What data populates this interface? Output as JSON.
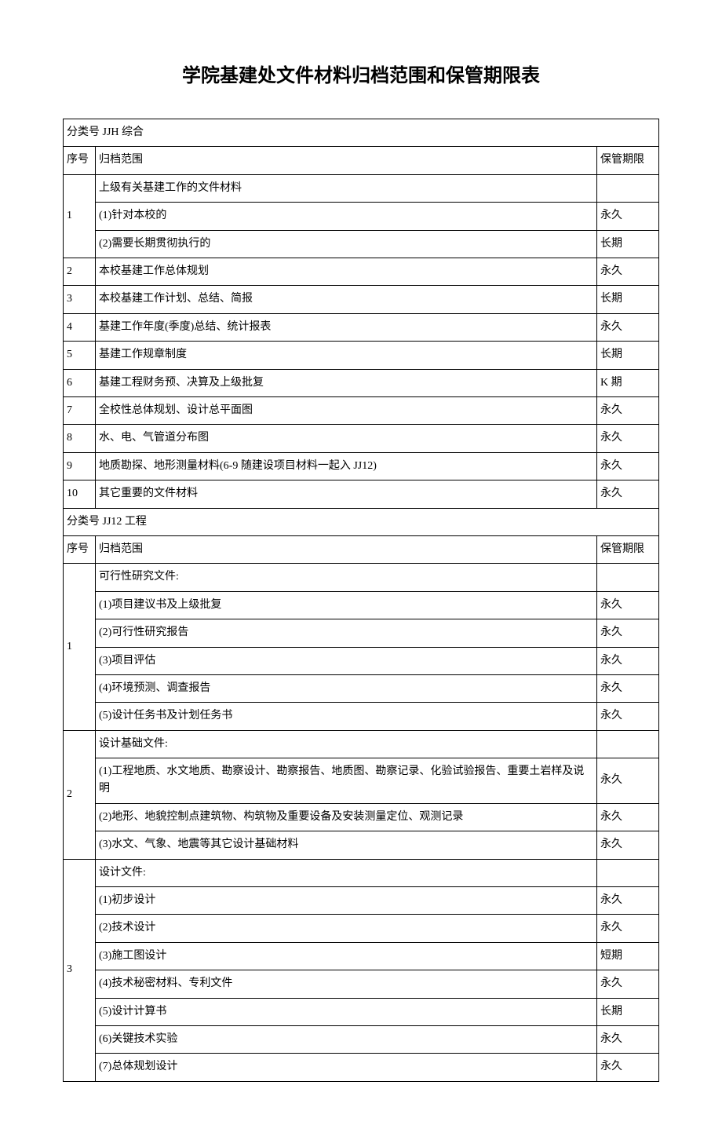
{
  "title": "学院基建处文件材料归档范围和保管期限表",
  "headers": {
    "seq": "序号",
    "scope": "归档范围",
    "period": "保管期限"
  },
  "sections": [
    {
      "category": "分类号 JJH 综合",
      "rows": [
        {
          "seq": "1",
          "items": [
            {
              "scope": "上级有关基建工作的文件材料",
              "period": ""
            },
            {
              "scope": "(1)针对本校的",
              "period": "永久"
            },
            {
              "scope": "(2)需要长期贯彻执行的",
              "period": "长期"
            }
          ]
        },
        {
          "seq": "2",
          "items": [
            {
              "scope": "本校基建工作总体规划",
              "period": "永久"
            }
          ]
        },
        {
          "seq": "3",
          "items": [
            {
              "scope": "本校基建工作计划、总结、简报",
              "period": "长期"
            }
          ]
        },
        {
          "seq": "4",
          "items": [
            {
              "scope": "基建工作年度(季度)总结、统计报表",
              "period": "永久"
            }
          ]
        },
        {
          "seq": "5",
          "items": [
            {
              "scope": "基建工作规章制度",
              "period": "长期"
            }
          ]
        },
        {
          "seq": "6",
          "items": [
            {
              "scope": "基建工程财务预、决算及上级批复",
              "period": "K 期"
            }
          ]
        },
        {
          "seq": "7",
          "items": [
            {
              "scope": "全校性总体规划、设计总平面图",
              "period": "永久"
            }
          ]
        },
        {
          "seq": "8",
          "items": [
            {
              "scope": "水、电、气管道分布图",
              "period": "永久"
            }
          ]
        },
        {
          "seq": "9",
          "items": [
            {
              "scope": "地质勘探、地形测量材料(6-9 随建设项目材料一起入 JJ12)",
              "period": "永久"
            }
          ]
        },
        {
          "seq": "10",
          "items": [
            {
              "scope": "其它重要的文件材料",
              "period": "永久"
            }
          ]
        }
      ]
    },
    {
      "category": "分类号 JJ12 工程",
      "rows": [
        {
          "seq": "1",
          "items": [
            {
              "scope": "可行性研究文件:",
              "period": ""
            },
            {
              "scope": "(1)项目建议书及上级批复",
              "period": "永久"
            },
            {
              "scope": "(2)可行性研究报告",
              "period": "永久"
            },
            {
              "scope": "(3)项目评估",
              "period": "永久"
            },
            {
              "scope": "(4)环境预测、调查报告",
              "period": "永久"
            },
            {
              "scope": "(5)设计任务书及计划任务书",
              "period": "永久"
            }
          ]
        },
        {
          "seq": "2",
          "items": [
            {
              "scope": "设计基础文件:",
              "period": ""
            },
            {
              "scope": "(1)工程地质、水文地质、勘察设计、勘察报告、地质图、勘察记录、化验试验报告、重要土岩样及说明",
              "period": "永久"
            },
            {
              "scope": "(2)地形、地貌控制点建筑物、构筑物及重要设备及安装测量定位、观测记录",
              "period": "永久"
            },
            {
              "scope": "(3)水文、气象、地震等其它设计基础材料",
              "period": "永久"
            }
          ]
        },
        {
          "seq": "3",
          "items": [
            {
              "scope": "设计文件:",
              "period": ""
            },
            {
              "scope": "(1)初步设计",
              "period": "永久"
            },
            {
              "scope": "(2)技术设计",
              "period": "永久"
            },
            {
              "scope": "(3)施工图设计",
              "period": "短期"
            },
            {
              "scope": "(4)技术秘密材料、专利文件",
              "period": "永久"
            },
            {
              "scope": "(5)设计计算书",
              "period": "长期"
            },
            {
              "scope": "(6)关键技术实验",
              "period": "永久"
            },
            {
              "scope": "(7)总体规划设计",
              "period": "永久"
            }
          ]
        }
      ]
    }
  ]
}
